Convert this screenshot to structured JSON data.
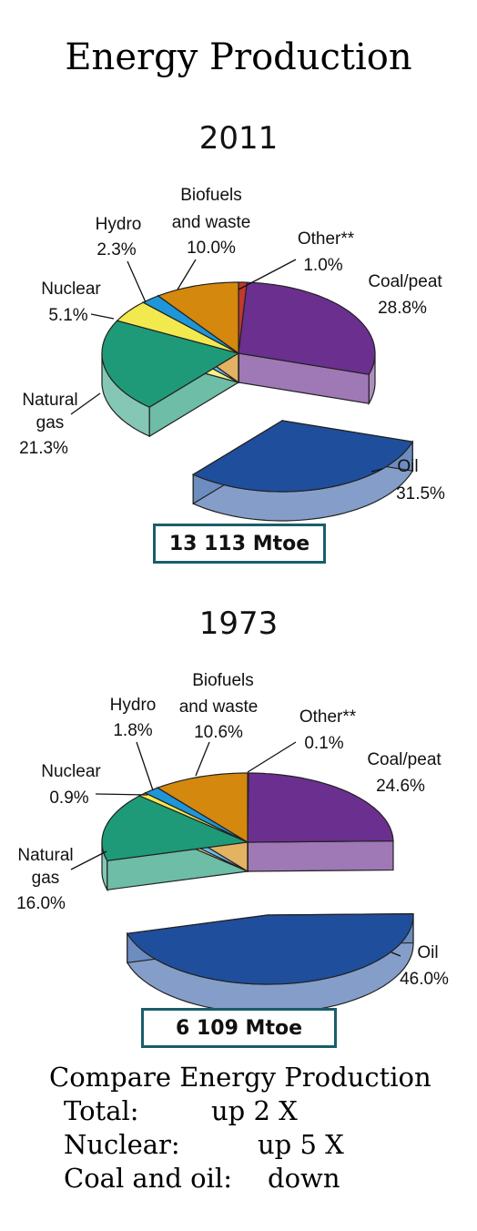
{
  "title": "Energy Production",
  "chart_data": [
    {
      "type": "pie",
      "title": "2011",
      "total_label": "13 113 Mtoe",
      "slices": [
        {
          "label": "Other**",
          "value": 1.0,
          "text": "1.0%",
          "color": "#c0392b"
        },
        {
          "label": "Coal/peat",
          "value": 28.8,
          "text": "28.8%",
          "color": "#6b2f8f"
        },
        {
          "label": "Oil",
          "value": 31.5,
          "text": "31.5%",
          "color": "#1f4e9c"
        },
        {
          "label": "Natural gas",
          "value": 21.3,
          "text": "21.3%",
          "color": "#1f9a78"
        },
        {
          "label": "Nuclear",
          "value": 5.1,
          "text": "5.1%",
          "color": "#f2e94e"
        },
        {
          "label": "Hydro",
          "value": 2.3,
          "text": "2.3%",
          "color": "#1e96d8"
        },
        {
          "label": "Biofuels and waste",
          "value": 10.0,
          "text": "10.0%",
          "color": "#d4880e"
        }
      ]
    },
    {
      "type": "pie",
      "title": "1973",
      "total_label": "6 109 Mtoe",
      "slices": [
        {
          "label": "Other**",
          "value": 0.1,
          "text": "0.1%",
          "color": "#c0392b"
        },
        {
          "label": "Coal/peat",
          "value": 24.6,
          "text": "24.6%",
          "color": "#6b2f8f"
        },
        {
          "label": "Oil",
          "value": 46.0,
          "text": "46.0%",
          "color": "#1f4e9c"
        },
        {
          "label": "Natural gas",
          "value": 16.0,
          "text": "16.0%",
          "color": "#1f9a78"
        },
        {
          "label": "Nuclear",
          "value": 0.9,
          "text": "0.9%",
          "color": "#f2e94e"
        },
        {
          "label": "Hydro",
          "value": 1.8,
          "text": "1.8%",
          "color": "#1e96d8"
        },
        {
          "label": "Biofuels and waste",
          "value": 10.6,
          "text": "10.6%",
          "color": "#d4880e"
        }
      ]
    }
  ],
  "compare": {
    "heading": "Compare Energy Production",
    "rows": [
      {
        "label": "Total:",
        "value": "up 2 X"
      },
      {
        "label": "Nuclear:",
        "value": "up 5 X"
      },
      {
        "label": "Coal and oil:",
        "value": "down"
      }
    ]
  }
}
